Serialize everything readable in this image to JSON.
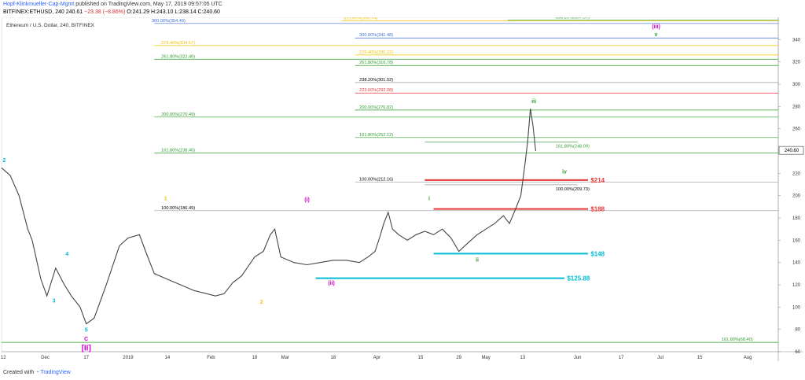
{
  "header": {
    "author": "Hopf-Klinkmueller-Cap-Mgmt",
    "published": "published on TradingView.com, May 17, 2019 09:57:05 UTC",
    "symbol": "BITFINEX:ETHUSD, 240",
    "price": "240.61",
    "change": "−23.38 (−8.86%)",
    "ohlc": "O:241.29 H:243.10 L:238.14 C:240.60"
  },
  "footer": {
    "created_with": "Created with",
    "brand": "TradingView"
  },
  "chart_data": {
    "type": "line",
    "title": "Ethereum / U.S. Dollar, 240, BITFINEX",
    "colors": {
      "price": "#444444",
      "cyan": "#00bcd4",
      "gold": "#f2c200",
      "magenta": "#d500d5",
      "green": "#2e9e2e",
      "red": "#e53935",
      "blue": "#3f6fd8",
      "grey": "#9e9e9e"
    },
    "ylim": [
      60,
      360
    ],
    "y_ticks": [
      60,
      80,
      100,
      120,
      140,
      160,
      180,
      200,
      220,
      240,
      260,
      280,
      300,
      320,
      340
    ],
    "current_price_label": "240.60",
    "x_ticks": [
      {
        "label": "12",
        "t": 0.02
      },
      {
        "label": "Dec",
        "t": 0.5
      },
      {
        "label": "17",
        "t": 0.97
      },
      {
        "label": "2019",
        "t": 1.45
      },
      {
        "label": "14",
        "t": 1.9
      },
      {
        "label": "Feb",
        "t": 2.4
      },
      {
        "label": "18",
        "t": 2.9
      },
      {
        "label": "Mar",
        "t": 3.25
      },
      {
        "label": "18",
        "t": 3.8
      },
      {
        "label": "Apr",
        "t": 4.3
      },
      {
        "label": "15",
        "t": 4.8
      },
      {
        "label": "29",
        "t": 5.24
      },
      {
        "label": "May",
        "t": 5.55
      },
      {
        "label": "13",
        "t": 5.97
      },
      {
        "label": "Jun",
        "t": 6.6
      },
      {
        "label": "17",
        "t": 7.1
      },
      {
        "label": "Jul",
        "t": 7.55
      },
      {
        "label": "15",
        "t": 8.0
      },
      {
        "label": "Aug",
        "t": 8.55
      }
    ],
    "price_path": [
      [
        0.0,
        225
      ],
      [
        0.1,
        218
      ],
      [
        0.2,
        200
      ],
      [
        0.3,
        170
      ],
      [
        0.35,
        160
      ],
      [
        0.45,
        125
      ],
      [
        0.52,
        110
      ],
      [
        0.62,
        135
      ],
      [
        0.72,
        120
      ],
      [
        0.8,
        110
      ],
      [
        0.9,
        100
      ],
      [
        0.97,
        85
      ],
      [
        1.06,
        90
      ],
      [
        1.2,
        120
      ],
      [
        1.35,
        155
      ],
      [
        1.45,
        162
      ],
      [
        1.58,
        165
      ],
      [
        1.65,
        150
      ],
      [
        1.75,
        130
      ],
      [
        1.9,
        125
      ],
      [
        2.05,
        120
      ],
      [
        2.2,
        115
      ],
      [
        2.35,
        112
      ],
      [
        2.45,
        110
      ],
      [
        2.55,
        112
      ],
      [
        2.65,
        122
      ],
      [
        2.75,
        128
      ],
      [
        2.9,
        145
      ],
      [
        3.0,
        150
      ],
      [
        3.08,
        165
      ],
      [
        3.13,
        170
      ],
      [
        3.2,
        145
      ],
      [
        3.35,
        140
      ],
      [
        3.5,
        138
      ],
      [
        3.65,
        140
      ],
      [
        3.8,
        142
      ],
      [
        3.95,
        142
      ],
      [
        4.1,
        140
      ],
      [
        4.2,
        145
      ],
      [
        4.28,
        150
      ],
      [
        4.33,
        162
      ],
      [
        4.38,
        175
      ],
      [
        4.43,
        185
      ],
      [
        4.48,
        170
      ],
      [
        4.55,
        165
      ],
      [
        4.65,
        160
      ],
      [
        4.75,
        165
      ],
      [
        4.85,
        168
      ],
      [
        4.95,
        165
      ],
      [
        5.05,
        170
      ],
      [
        5.15,
        162
      ],
      [
        5.24,
        150
      ],
      [
        5.35,
        158
      ],
      [
        5.45,
        165
      ],
      [
        5.55,
        170
      ],
      [
        5.65,
        175
      ],
      [
        5.75,
        182
      ],
      [
        5.82,
        175
      ],
      [
        5.9,
        190
      ],
      [
        5.95,
        200
      ],
      [
        6.0,
        230
      ],
      [
        6.03,
        250
      ],
      [
        6.06,
        278
      ],
      [
        6.09,
        262
      ],
      [
        6.12,
        240
      ]
    ],
    "hlines": [
      {
        "y": 68.4,
        "x0": 0.0,
        "x1": 8.9,
        "color": "green",
        "label": "161.80%(68.40)",
        "lx": 8.25,
        "side": "above"
      },
      {
        "y": 186.49,
        "x0": 1.75,
        "x1": 8.9,
        "color": "grey",
        "label": "100.00%(186.49)",
        "lx": 1.83,
        "side": "above"
      },
      {
        "y": 238.4,
        "x0": 1.75,
        "x1": 8.9,
        "color": "green",
        "label": "161.80%(238.40)",
        "lx": 1.83,
        "side": "above"
      },
      {
        "y": 270.49,
        "x0": 1.75,
        "x1": 8.9,
        "color": "green",
        "label": "200.00%(270.49)",
        "lx": 1.83,
        "side": "above"
      },
      {
        "y": 322.4,
        "x0": 1.75,
        "x1": 8.9,
        "color": "green",
        "label": "261.80%(322.40)",
        "lx": 1.83,
        "side": "above"
      },
      {
        "y": 334.67,
        "x0": 1.75,
        "x1": 8.9,
        "color": "gold",
        "label": "276.40%(334.67)",
        "lx": 1.83,
        "side": "above"
      },
      {
        "y": 354.49,
        "x0": 1.75,
        "x1": 8.9,
        "color": "blue",
        "label": "300.00%(354.49)",
        "lx": 1.72,
        "side": "above"
      },
      {
        "y": 356.74,
        "x0": 3.9,
        "x1": 8.9,
        "color": "gold",
        "label": "323.60%(356.74)",
        "lx": 3.92,
        "side": "above"
      },
      {
        "y": 357.57,
        "x0": 5.8,
        "x1": 8.9,
        "color": "green",
        "label": "338.20%(357.57)",
        "lx": 6.35,
        "side": "above"
      },
      {
        "y": 212.16,
        "x0": 4.05,
        "x1": 8.9,
        "color": "grey",
        "label": "100.00%(212.16)",
        "lx": 4.1,
        "side": "above"
      },
      {
        "y": 252.12,
        "x0": 4.05,
        "x1": 8.9,
        "color": "green",
        "label": "161.80%(252.12)",
        "lx": 4.1,
        "side": "above"
      },
      {
        "y": 276.82,
        "x0": 4.05,
        "x1": 8.9,
        "color": "green",
        "label": "200.00%(276.82)",
        "lx": 4.1,
        "side": "above"
      },
      {
        "y": 292.08,
        "x0": 4.05,
        "x1": 8.9,
        "color": "red",
        "label": "223.60%(292.08)",
        "lx": 4.1,
        "side": "above"
      },
      {
        "y": 301.52,
        "x0": 4.05,
        "x1": 8.9,
        "color": "grey",
        "label": "238.20%(301.52)",
        "lx": 4.1,
        "side": "above"
      },
      {
        "y": 316.78,
        "x0": 4.05,
        "x1": 8.9,
        "color": "green",
        "label": "261.80%(316.78)",
        "lx": 4.1,
        "side": "above"
      },
      {
        "y": 326.22,
        "x0": 4.05,
        "x1": 8.9,
        "color": "gold",
        "label": "276.40%(326.22)",
        "lx": 4.1,
        "side": "above"
      },
      {
        "y": 341.48,
        "x0": 4.05,
        "x1": 8.9,
        "color": "blue",
        "label": "300.00%(341.48)",
        "lx": 4.1,
        "side": "above"
      },
      {
        "y": 209.73,
        "x0": 4.85,
        "x1": 6.6,
        "color": "grey",
        "label": "100.00%(209.73)",
        "lx": 6.35,
        "side": "below"
      },
      {
        "y": 248.09,
        "x0": 4.85,
        "x1": 6.6,
        "color": "green",
        "label": "161.80%(248.09)",
        "lx": 6.35,
        "side": "below"
      }
    ],
    "levels": [
      {
        "y": 125.88,
        "x0": 3.6,
        "x1": 6.45,
        "color": "cyan",
        "label": "$125.88",
        "lx": 6.48
      },
      {
        "y": 148,
        "x0": 4.95,
        "x1": 6.72,
        "color": "cyan",
        "label": "$148",
        "lx": 6.75
      },
      {
        "y": 188,
        "x0": 4.95,
        "x1": 6.72,
        "color": "red",
        "label": "$188",
        "lx": 6.75
      },
      {
        "y": 214,
        "x0": 4.85,
        "x1": 6.72,
        "color": "red",
        "label": "$214",
        "lx": 6.75
      }
    ],
    "annotations": [
      {
        "text": "2",
        "t": 0.03,
        "y": 230,
        "color": "cyan"
      },
      {
        "text": "3",
        "t": 0.6,
        "y": 104,
        "color": "cyan"
      },
      {
        "text": "4",
        "t": 0.75,
        "y": 146,
        "color": "cyan"
      },
      {
        "text": "5",
        "t": 0.97,
        "y": 78,
        "color": "cyan"
      },
      {
        "text": "C",
        "t": 0.97,
        "y": 70,
        "color": "magenta"
      },
      {
        "text": "[II]",
        "t": 0.97,
        "y": 61,
        "color": "magenta",
        "size": 10
      },
      {
        "text": "1",
        "t": 1.88,
        "y": 196,
        "color": "gold"
      },
      {
        "text": "2",
        "t": 2.98,
        "y": 103,
        "color": "gold"
      },
      {
        "text": "(i)",
        "t": 3.5,
        "y": 195,
        "color": "magenta"
      },
      {
        "text": "(ii)",
        "t": 3.78,
        "y": 120,
        "color": "magenta"
      },
      {
        "text": "i",
        "t": 4.9,
        "y": 196,
        "color": "green"
      },
      {
        "text": "ii",
        "t": 5.45,
        "y": 141,
        "color": "green"
      },
      {
        "text": "iii",
        "t": 6.1,
        "y": 283,
        "color": "green"
      },
      {
        "text": "iv",
        "t": 6.45,
        "y": 220,
        "color": "green"
      },
      {
        "text": "(iii)",
        "t": 7.5,
        "y": 350,
        "color": "magenta"
      },
      {
        "text": "v",
        "t": 7.5,
        "y": 343,
        "color": "green"
      }
    ]
  }
}
